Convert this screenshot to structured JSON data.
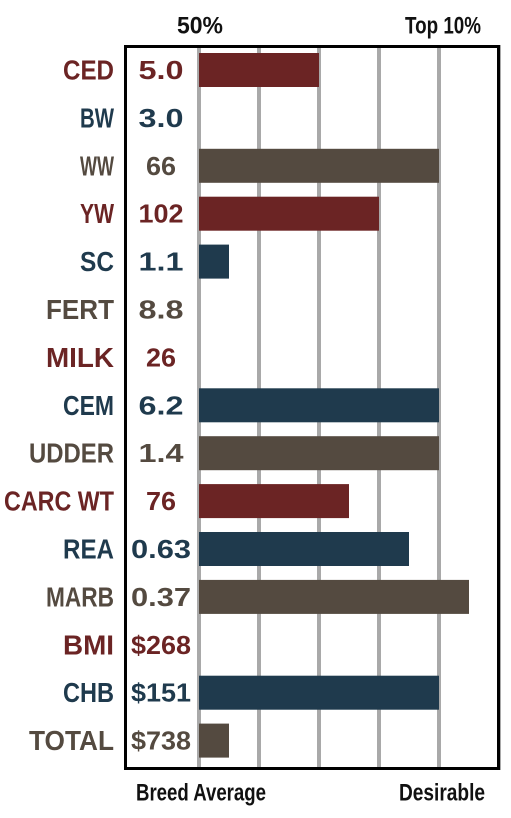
{
  "chart_data": {
    "type": "bar",
    "orientation": "horizontal",
    "top_labels": {
      "left": "50%",
      "right": "Top 10%"
    },
    "bottom_labels": {
      "left": "Breed Average",
      "right": "Desirable"
    },
    "xlim": [
      0,
      5
    ],
    "grid": true,
    "colors": {
      "red": "#6b2424",
      "blue": "#1f3a4d",
      "brown": "#544a40",
      "grid": "#a9a9a9",
      "frame": "#000000"
    },
    "rows": [
      {
        "trait": "CED",
        "value_label": "5.0",
        "bar": 2.0,
        "color": "red"
      },
      {
        "trait": "BW",
        "value_label": "3.0",
        "bar": 0,
        "color": "blue"
      },
      {
        "trait": "WW",
        "value_label": "66",
        "bar": 4.0,
        "color": "brown"
      },
      {
        "trait": "YW",
        "value_label": "102",
        "bar": 3.0,
        "color": "red"
      },
      {
        "trait": "SC",
        "value_label": "1.1",
        "bar": 0.5,
        "color": "blue"
      },
      {
        "trait": "FERT",
        "value_label": "8.8",
        "bar": 0,
        "color": "brown"
      },
      {
        "trait": "MILK",
        "value_label": "26",
        "bar": 0,
        "color": "red"
      },
      {
        "trait": "CEM",
        "value_label": "6.2",
        "bar": 4.0,
        "color": "blue"
      },
      {
        "trait": "UDDER",
        "value_label": "1.4",
        "bar": 4.0,
        "color": "brown"
      },
      {
        "trait": "CARC WT",
        "value_label": "76",
        "bar": 2.5,
        "color": "red"
      },
      {
        "trait": "REA",
        "value_label": "0.63",
        "bar": 3.5,
        "color": "blue"
      },
      {
        "trait": "MARB",
        "value_label": "0.37",
        "bar": 4.5,
        "color": "brown"
      },
      {
        "trait": "BMI",
        "value_label": "$268",
        "bar": 0,
        "color": "red"
      },
      {
        "trait": "CHB",
        "value_label": "$151",
        "bar": 4.0,
        "color": "blue"
      },
      {
        "trait": "TOTAL",
        "value_label": "$738",
        "bar": 0.5,
        "color": "brown"
      }
    ]
  }
}
